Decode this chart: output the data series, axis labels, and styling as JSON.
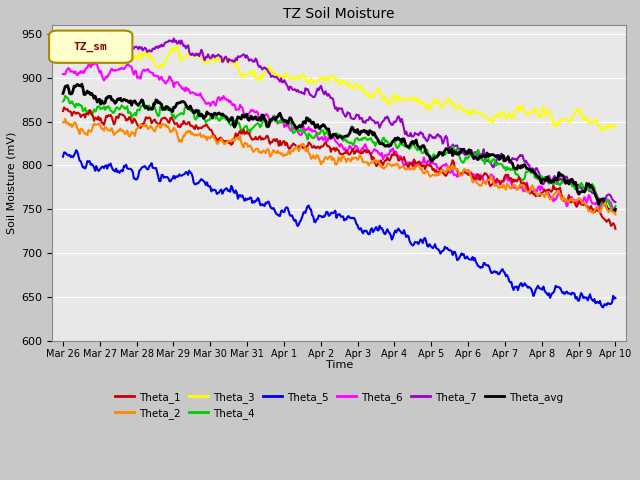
{
  "title": "TZ Soil Moisture",
  "xlabel": "Time",
  "ylabel": "Soil Moisture (mV)",
  "ylim": [
    600,
    960
  ],
  "yticks": [
    600,
    650,
    700,
    750,
    800,
    850,
    900,
    950
  ],
  "fig_bg": "#c8c8c8",
  "plot_bg": "#e8e8e8",
  "grid_color": "#ffffff",
  "x_labels": [
    "Mar 26",
    "Mar 27",
    "Mar 28",
    "Mar 29",
    "Mar 30",
    "Mar 31",
    "Apr 1",
    "Apr 2",
    "Apr 3",
    "Apr 4",
    "Apr 5",
    "Apr 6",
    "Apr 7",
    "Apr 8",
    "Apr 9",
    "Apr 10"
  ],
  "legend_label": "TZ_sm",
  "legend_box_color": "#ffffcc",
  "legend_box_edge": "#aa8800",
  "legend_text_color": "#880000",
  "series_order": [
    "Theta_3",
    "Theta_7",
    "Theta_6",
    "Theta_4",
    "Theta_avg",
    "Theta_1",
    "Theta_2",
    "Theta_5"
  ],
  "series": {
    "Theta_1": {
      "color": "#cc0000",
      "lw": 1.5,
      "keypoints": [
        [
          0,
          862
        ],
        [
          4,
          840
        ],
        [
          7,
          820
        ],
        [
          10,
          800
        ],
        [
          12,
          785
        ],
        [
          14,
          760
        ],
        [
          15,
          730
        ]
      ]
    },
    "Theta_2": {
      "color": "#ff8800",
      "lw": 1.5,
      "keypoints": [
        [
          0,
          849
        ],
        [
          4,
          830
        ],
        [
          7,
          812
        ],
        [
          10,
          795
        ],
        [
          12,
          778
        ],
        [
          14,
          753
        ],
        [
          15,
          740
        ]
      ]
    },
    "Theta_3": {
      "color": "#ffff00",
      "lw": 1.5,
      "keypoints": [
        [
          0,
          927
        ],
        [
          3,
          925
        ],
        [
          4,
          919
        ],
        [
          5,
          910
        ],
        [
          7,
          895
        ],
        [
          9,
          878
        ],
        [
          11,
          865
        ],
        [
          13,
          855
        ],
        [
          15,
          843
        ]
      ]
    },
    "Theta_4": {
      "color": "#00cc00",
      "lw": 1.5,
      "keypoints": [
        [
          0,
          873
        ],
        [
          4,
          855
        ],
        [
          7,
          840
        ],
        [
          10,
          818
        ],
        [
          12,
          800
        ],
        [
          14,
          775
        ],
        [
          15,
          755
        ]
      ]
    },
    "Theta_5": {
      "color": "#0000ee",
      "lw": 1.5,
      "keypoints": [
        [
          0,
          810
        ],
        [
          1,
          804
        ],
        [
          2,
          795
        ],
        [
          3,
          787
        ],
        [
          4,
          775
        ],
        [
          5,
          762
        ],
        [
          6,
          750
        ],
        [
          7,
          740
        ],
        [
          8,
          733
        ],
        [
          9,
          722
        ],
        [
          10,
          707
        ],
        [
          11,
          693
        ],
        [
          12,
          670
        ],
        [
          13,
          655
        ],
        [
          14,
          648
        ],
        [
          15,
          647
        ]
      ]
    },
    "Theta_6": {
      "color": "#ff00ff",
      "lw": 1.5,
      "keypoints": [
        [
          0,
          904
        ],
        [
          1,
          905
        ],
        [
          2,
          903
        ],
        [
          3,
          892
        ],
        [
          4,
          876
        ],
        [
          6,
          850
        ],
        [
          8,
          820
        ],
        [
          10,
          800
        ],
        [
          12,
          783
        ],
        [
          14,
          762
        ],
        [
          15,
          753
        ]
      ]
    },
    "Theta_7": {
      "color": "#9900cc",
      "lw": 1.5,
      "keypoints": [
        [
          0,
          937
        ],
        [
          3,
          936
        ],
        [
          4,
          930
        ],
        [
          5,
          916
        ],
        [
          6,
          900
        ],
        [
          7,
          880
        ],
        [
          8,
          860
        ],
        [
          10,
          830
        ],
        [
          12,
          808
        ],
        [
          14,
          776
        ],
        [
          15,
          755
        ]
      ]
    },
    "Theta_avg": {
      "color": "#000000",
      "lw": 2.0,
      "keypoints": [
        [
          0,
          882
        ],
        [
          4,
          860
        ],
        [
          7,
          843
        ],
        [
          10,
          820
        ],
        [
          12,
          805
        ],
        [
          14,
          772
        ],
        [
          15,
          748
        ]
      ]
    }
  }
}
